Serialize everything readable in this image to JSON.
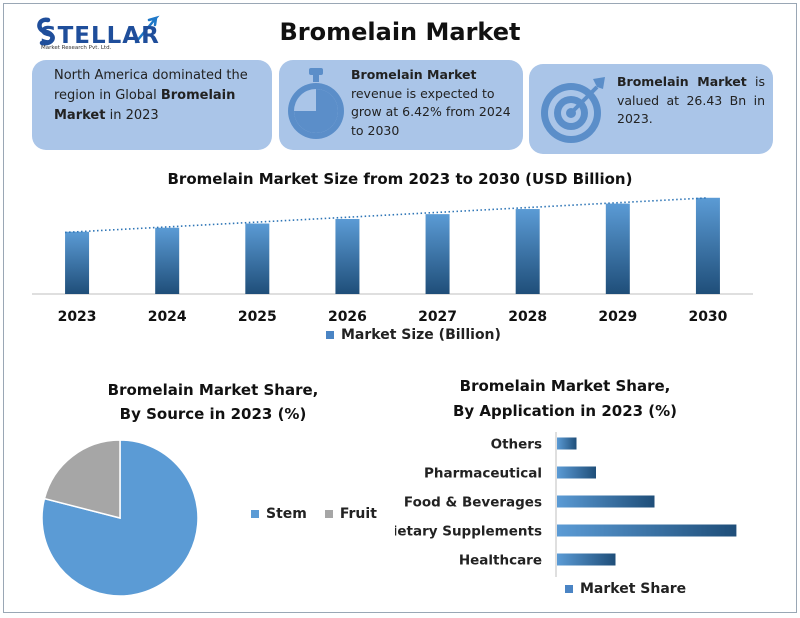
{
  "title": "Bromelain Market",
  "logo": {
    "name": "STELLAR",
    "subtitle": "Market Research Pvt. Ltd."
  },
  "colors": {
    "box_bg": "#aac5e8",
    "icon": "#5b8ec9",
    "bar": "#4a84c4",
    "stem": "#5b9bd5",
    "fruit": "#a6a6a6"
  },
  "info_boxes": [
    {
      "icon": "pie-chart-icon",
      "text_1": "North America dominated the region in Global ",
      "text_bold": "Bromelain Market",
      "text_2": " in 2023"
    },
    {
      "icon": "stopwatch-icon",
      "text_bold": "Bromelain Market",
      "text_2": " revenue is expected to grow at 6.42% from 2024 to 2030"
    },
    {
      "icon": "target-icon",
      "text_bold": "Bromelain Market",
      "text_2": " is valued at 26.43 Bn in 2023."
    }
  ],
  "chart_data": [
    {
      "type": "bar",
      "title": "Bromelain Market Size from 2023 to 2030 (USD Billion)",
      "categories": [
        "2023",
        "2024",
        "2025",
        "2026",
        "2027",
        "2028",
        "2029",
        "2030"
      ],
      "series": [
        {
          "name": "Market Size (Billion)",
          "values": [
            26.43,
            28.13,
            29.93,
            31.85,
            33.9,
            36.07,
            38.39,
            40.85
          ]
        }
      ],
      "trendline": "linear",
      "ylim": [
        0,
        45
      ],
      "legend": "bottom"
    },
    {
      "type": "pie",
      "title": "Bromelain Market Share, By Source in 2023 (%)",
      "title_lines": [
        "Bromelain Market Share,",
        "By Source in 2023 (%)"
      ],
      "labels": [
        "Stem",
        "Fruit"
      ],
      "values": [
        79,
        21
      ],
      "legend": "right"
    },
    {
      "type": "bar",
      "orientation": "horizontal",
      "title": "Bromelain Market Share, By Application in 2023 (%)",
      "title_lines": [
        "Bromelain Market Share,",
        "By Application in 2023 (%)"
      ],
      "categories": [
        "Others",
        "Pharmaceutical",
        "Food & Beverages",
        "Dietary Supplements",
        "Healthcare"
      ],
      "series": [
        {
          "name": "Market Share",
          "values": [
            5,
            10,
            25,
            46,
            15
          ]
        }
      ],
      "xlim": [
        0,
        50
      ],
      "legend": "bottom"
    }
  ]
}
